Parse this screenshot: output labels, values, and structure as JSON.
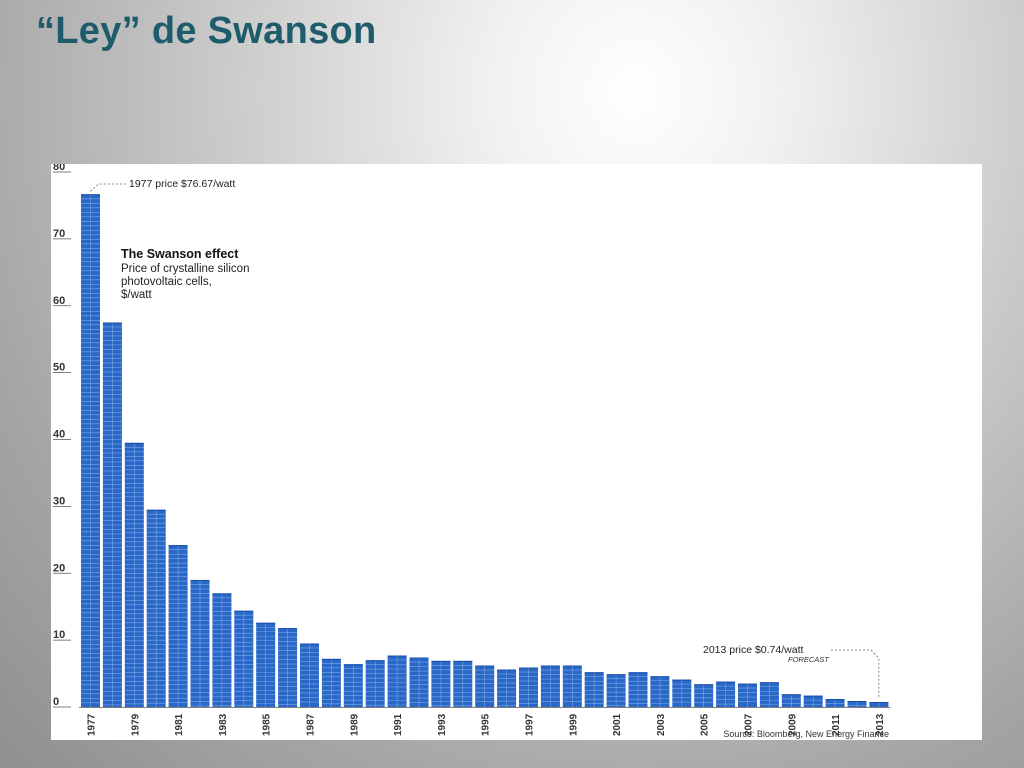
{
  "slide": {
    "title": "“Ley” de Swanson"
  },
  "chart_data": {
    "type": "bar",
    "title": "The Swanson effect",
    "subtitle_lines": [
      "Price of crystalline silicon",
      "photovoltaic cells,",
      "$/watt"
    ],
    "categories": [
      "1977",
      "1978",
      "1979",
      "1980",
      "1981",
      "1982",
      "1983",
      "1984",
      "1985",
      "1986",
      "1987",
      "1988",
      "1989",
      "1990",
      "1991",
      "1992",
      "1993",
      "1994",
      "1995",
      "1996",
      "1997",
      "1998",
      "1999",
      "2000",
      "2001",
      "2002",
      "2003",
      "2004",
      "2005",
      "2006",
      "2007",
      "2008",
      "2009",
      "2010",
      "2011",
      "2012",
      "2013"
    ],
    "x_tick_labels": [
      "1977",
      "1979",
      "1981",
      "1983",
      "1985",
      "1987",
      "1989",
      "1991",
      "1993",
      "1995",
      "1997",
      "1999",
      "2001",
      "2003",
      "2005",
      "2007",
      "2009",
      "2011",
      "2013"
    ],
    "values": [
      76.67,
      57.5,
      39.5,
      29.5,
      24.2,
      19.0,
      17.0,
      14.4,
      12.6,
      11.8,
      9.5,
      7.2,
      6.4,
      7.0,
      7.7,
      7.4,
      6.9,
      6.9,
      6.2,
      5.6,
      5.9,
      6.2,
      6.2,
      5.2,
      4.9,
      5.2,
      4.6,
      4.1,
      3.4,
      3.8,
      3.5,
      3.7,
      1.9,
      1.7,
      1.2,
      0.9,
      0.74
    ],
    "ylim": [
      0,
      80
    ],
    "y_ticks": [
      "0",
      "10",
      "20",
      "30",
      "40",
      "50",
      "60",
      "70",
      "80"
    ],
    "xlabel": "",
    "ylabel": "",
    "grid": false,
    "bar_color": "#2a68c8",
    "annotations": [
      {
        "label": "1977 price $76.67/watt",
        "category": "1977"
      },
      {
        "label": "2013 price $0.74/watt",
        "note": "FORECAST",
        "category": "2013"
      }
    ],
    "source": "Source: Bloomberg, New Energy Finance"
  }
}
